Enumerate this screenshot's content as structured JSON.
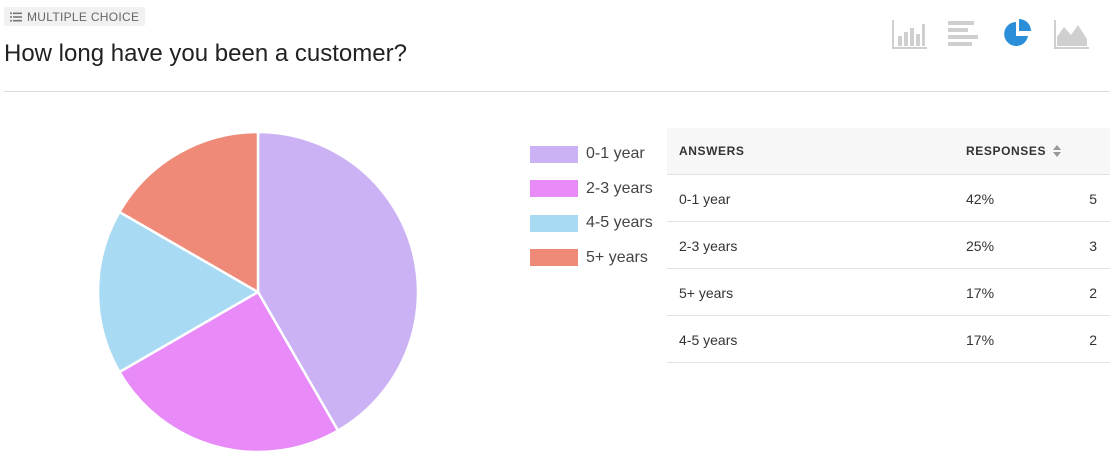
{
  "question_type": {
    "label": "MULTIPLE CHOICE",
    "icon": "list-icon"
  },
  "question": {
    "title": "How long have you been a customer?"
  },
  "toolbar": {
    "icons": [
      "bar-chart-icon",
      "horizontal-bar-chart-icon",
      "pie-chart-icon",
      "area-chart-icon"
    ],
    "active": "pie-chart-icon",
    "active_color": "#2a8fd8",
    "inactive_color": "#cfcfcf"
  },
  "chart_data": {
    "type": "pie",
    "categories": [
      "0-1 year",
      "2-3 years",
      "4-5 years",
      "5+ years"
    ],
    "values": [
      5,
      3,
      2,
      2
    ],
    "colors": [
      "#cbb2f4",
      "#e88bf8",
      "#a8dbf3",
      "#ef8978"
    ],
    "legend": "right"
  },
  "table": {
    "headers": {
      "answers": "ANSWERS",
      "responses": "RESPONSES"
    },
    "rows": [
      {
        "answer": "0-1 year",
        "percent": "42%",
        "count": "5"
      },
      {
        "answer": "2-3 years",
        "percent": "25%",
        "count": "3"
      },
      {
        "answer": "5+ years",
        "percent": "17%",
        "count": "2"
      },
      {
        "answer": "4-5 years",
        "percent": "17%",
        "count": "2"
      }
    ]
  }
}
